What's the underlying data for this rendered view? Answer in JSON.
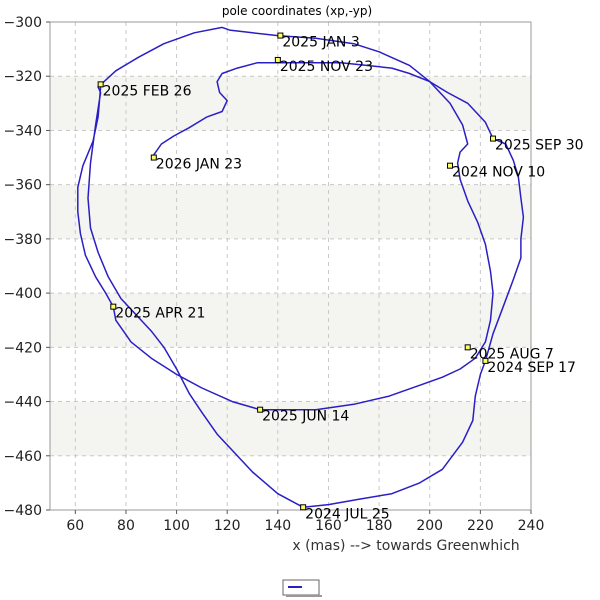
{
  "chart_data": {
    "type": "line",
    "title": "pole coordinates (xp,-yp)",
    "xlabel": "x (mas) --> towards Greenwhich",
    "ylabel": "",
    "xlim": [
      50,
      240
    ],
    "ylim": [
      -480,
      -300
    ],
    "xticks": [
      60,
      80,
      100,
      120,
      140,
      160,
      180,
      200,
      220,
      240
    ],
    "yticks": [
      -300,
      -320,
      -340,
      -360,
      -380,
      -400,
      -420,
      -440,
      -460,
      -480
    ],
    "grid": true,
    "legend": "bottom-center",
    "series_color": "#2a1fc4",
    "marker_color": "#ffff66",
    "series": [
      {
        "name": "",
        "points": [
          [
            150,
            -479
          ],
          [
            160,
            -478
          ],
          [
            172,
            -476
          ],
          [
            185,
            -474
          ],
          [
            196,
            -470
          ],
          [
            205,
            -465
          ],
          [
            213,
            -455
          ],
          [
            217,
            -447
          ],
          [
            218,
            -438
          ],
          [
            220,
            -430
          ],
          [
            222,
            -425
          ],
          [
            225,
            -415
          ],
          [
            229,
            -405
          ],
          [
            233,
            -395
          ],
          [
            236,
            -387
          ],
          [
            236,
            -380
          ],
          [
            237,
            -372
          ],
          [
            236,
            -365
          ],
          [
            235,
            -357
          ],
          [
            233,
            -351
          ],
          [
            230,
            -345
          ],
          [
            225,
            -343
          ],
          [
            222,
            -337
          ],
          [
            215,
            -330
          ],
          [
            207,
            -326
          ],
          [
            200,
            -322
          ],
          [
            192,
            -319
          ],
          [
            185,
            -317
          ],
          [
            175,
            -316
          ],
          [
            165,
            -315
          ],
          [
            155,
            -315
          ],
          [
            148,
            -315
          ],
          [
            140,
            -315
          ],
          [
            132,
            -315
          ],
          [
            124,
            -317
          ],
          [
            118,
            -319
          ],
          [
            116,
            -322
          ],
          [
            117,
            -326
          ],
          [
            120,
            -329
          ],
          [
            118,
            -333
          ],
          [
            112,
            -335
          ],
          [
            105,
            -339
          ],
          [
            99,
            -342
          ],
          [
            94,
            -345
          ],
          [
            91,
            -349
          ],
          [
            91,
            -350
          ]
        ],
        "early_points": [
          [
            150,
            -479
          ],
          [
            140,
            -474
          ],
          [
            130,
            -466
          ],
          [
            122,
            -458
          ],
          [
            116,
            -452
          ],
          [
            110,
            -444
          ],
          [
            105,
            -437
          ],
          [
            100,
            -428
          ],
          [
            95,
            -420
          ],
          [
            90,
            -414
          ],
          [
            84,
            -408
          ],
          [
            78,
            -402
          ],
          [
            73,
            -394
          ],
          [
            69,
            -385
          ],
          [
            66,
            -376
          ],
          [
            65,
            -365
          ],
          [
            66,
            -352
          ],
          [
            68,
            -338
          ],
          [
            70,
            -326
          ],
          [
            69,
            -324
          ],
          [
            76,
            -318
          ],
          [
            85,
            -313
          ],
          [
            95,
            -308
          ],
          [
            107,
            -304
          ],
          [
            118,
            -302
          ],
          [
            121,
            -303
          ],
          [
            130,
            -304
          ],
          [
            140,
            -305
          ],
          [
            155,
            -306
          ],
          [
            170,
            -308
          ],
          [
            180,
            -311
          ],
          [
            192,
            -316
          ],
          [
            200,
            -322
          ],
          [
            208,
            -330
          ],
          [
            213,
            -338
          ],
          [
            215,
            -345
          ],
          [
            212,
            -348
          ],
          [
            211,
            -352
          ],
          [
            212,
            -358
          ],
          [
            215,
            -366
          ],
          [
            219,
            -374
          ],
          [
            222,
            -382
          ],
          [
            224,
            -392
          ],
          [
            225,
            -400
          ],
          [
            224,
            -410
          ],
          [
            222,
            -418
          ],
          [
            218,
            -424
          ],
          [
            212,
            -428
          ],
          [
            205,
            -431
          ],
          [
            196,
            -434
          ],
          [
            184,
            -438
          ],
          [
            170,
            -441
          ],
          [
            155,
            -443
          ],
          [
            142,
            -443
          ],
          [
            133,
            -443
          ],
          [
            122,
            -440
          ],
          [
            110,
            -435
          ],
          [
            100,
            -430
          ],
          [
            90,
            -424
          ],
          [
            82,
            -418
          ],
          [
            76,
            -410
          ],
          [
            75,
            -405
          ],
          [
            72,
            -400
          ],
          [
            68,
            -394
          ],
          [
            64,
            -386
          ],
          [
            62,
            -378
          ],
          [
            61,
            -370
          ],
          [
            61,
            -361
          ],
          [
            63,
            -353
          ],
          [
            67,
            -344
          ],
          [
            69,
            -335
          ],
          [
            70,
            -324
          ],
          [
            70,
            -323
          ]
        ]
      }
    ],
    "annotations": [
      {
        "label": "2025 JAN 3",
        "x": 141,
        "y": -305
      },
      {
        "label": "2025 NOV 23",
        "x": 140,
        "y": -314
      },
      {
        "label": "2025 FEB 26",
        "x": 70,
        "y": -323
      },
      {
        "label": "2026 JAN 23",
        "x": 91,
        "y": -350
      },
      {
        "label": "2025 SEP 30",
        "x": 225,
        "y": -343
      },
      {
        "label": "2024 NOV 10",
        "x": 208,
        "y": -353
      },
      {
        "label": "2025 APR 21",
        "x": 75,
        "y": -405
      },
      {
        "label": "2025 AUG 7",
        "x": 215,
        "y": -420
      },
      {
        "label": "2024 SEP 17",
        "x": 222,
        "y": -425
      },
      {
        "label": "2025 JUN 14",
        "x": 133,
        "y": -443
      },
      {
        "label": "2024 JUL 25",
        "x": 150,
        "y": -479
      }
    ]
  }
}
